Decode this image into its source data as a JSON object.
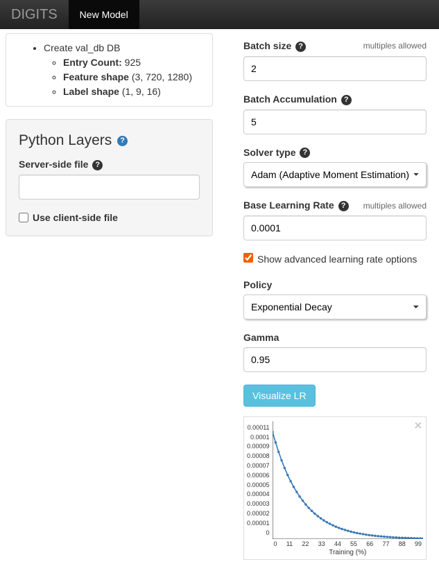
{
  "navbar": {
    "brand": "DIGITS",
    "active": "New Model"
  },
  "db_info": {
    "title": "Create val_db DB",
    "entry_count_label": "Entry Count:",
    "entry_count_value": "925",
    "feature_shape_label": "Feature shape",
    "feature_shape_value": "(3, 720, 1280)",
    "label_shape_label": "Label shape",
    "label_shape_value": "(1, 9, 16)"
  },
  "python_layers": {
    "title": "Python Layers",
    "server_file_label": "Server-side file",
    "server_file_value": "",
    "client_file_label": "Use client-side file",
    "client_file_checked": false
  },
  "form": {
    "batch_size": {
      "label": "Batch size",
      "hint": "multiples allowed",
      "value": "2"
    },
    "batch_accum": {
      "label": "Batch Accumulation",
      "value": "5"
    },
    "solver": {
      "label": "Solver type",
      "value": "Adam (Adaptive Moment Estimation)"
    },
    "base_lr": {
      "label": "Base Learning Rate",
      "hint": "multiples allowed",
      "value": "0.0001"
    },
    "advanced_checkbox": {
      "label": "Show advanced learning rate options",
      "checked": true
    },
    "policy": {
      "label": "Policy",
      "value": "Exponential Decay"
    },
    "gamma": {
      "label": "Gamma",
      "value": "0.95"
    },
    "visualize_btn": "Visualize LR"
  },
  "chart": {
    "type": "line",
    "x_label": "Training (%)",
    "x_ticks": [
      "0",
      "11",
      "22",
      "33",
      "44",
      "55",
      "66",
      "77",
      "88",
      "99"
    ],
    "y_ticks": [
      "0.00011",
      "0.0001",
      "0.00009",
      "0.00008",
      "0.00007",
      "0.00006",
      "0.00005",
      "0.00004",
      "0.00003",
      "0.00002",
      "0.00001",
      "0"
    ],
    "ylim": [
      0,
      0.00011
    ],
    "xlim": [
      0,
      100
    ],
    "line_color": "#3a78b5",
    "marker_color": "#3a78b5",
    "background_color": "#ffffff",
    "series": {
      "x": [
        0,
        2,
        4,
        6,
        8,
        10,
        12,
        14,
        16,
        18,
        20,
        22,
        24,
        26,
        28,
        30,
        32,
        34,
        36,
        38,
        40,
        42,
        44,
        46,
        48,
        50,
        52,
        54,
        56,
        58,
        60,
        62,
        64,
        66,
        68,
        70,
        72,
        74,
        76,
        78,
        80,
        82,
        84,
        86,
        88,
        90,
        92,
        94,
        96,
        98,
        100
      ],
      "y": [
        0.0001,
        9.02e-05,
        8.14e-05,
        7.35e-05,
        6.63e-05,
        5.98e-05,
        5.4e-05,
        4.87e-05,
        4.4e-05,
        3.97e-05,
        3.58e-05,
        3.23e-05,
        2.91e-05,
        2.63e-05,
        2.37e-05,
        2.14e-05,
        1.93e-05,
        1.74e-05,
        1.57e-05,
        1.42e-05,
        1.28e-05,
        1.15e-05,
        1.04e-05,
        9.4e-06,
        8.5e-06,
        7.7e-06,
        6.9e-06,
        6.2e-06,
        5.6e-06,
        5.1e-06,
        4.6e-06,
        4.1e-06,
        3.7e-06,
        3.4e-06,
        3e-06,
        2.7e-06,
        2.5e-06,
        2.2e-06,
        2e-06,
        1.8e-06,
        1.6e-06,
        1.5e-06,
        1.3e-06,
        1.2e-06,
        1.1e-06,
        1e-06,
        9e-07,
        8e-07,
        7e-07,
        6e-07,
        6e-07
      ]
    }
  }
}
